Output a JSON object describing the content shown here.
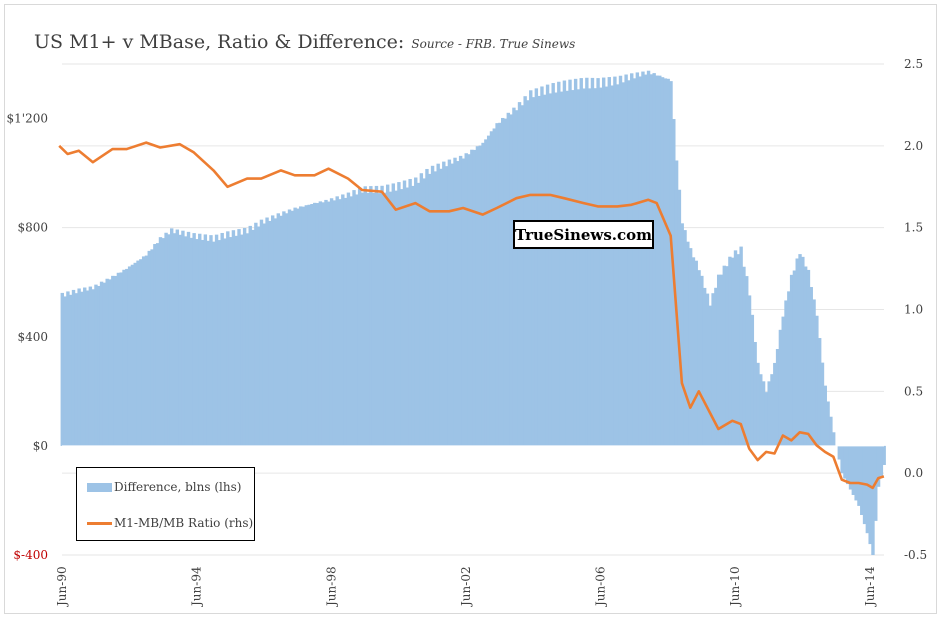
{
  "chart_data": {
    "type": "bar+line",
    "title": "US M1+ v MBase, Ratio & Difference:",
    "subtitle": "Source - FRB. True Sinews",
    "watermark": "TrueSinews.com",
    "x_range": [
      "1990-06",
      "2014-12"
    ],
    "x_tick_labels": [
      "Jun-90",
      "Jun-94",
      "Jun-98",
      "Jun-02",
      "Jun-06",
      "Jun-10",
      "Jun-14"
    ],
    "left_axis": {
      "ylim": [
        -400,
        1400
      ],
      "tick_labels": [
        {
          "value": 1200,
          "label": "$1'200"
        },
        {
          "value": 800,
          "label": "$800"
        },
        {
          "value": 400,
          "label": "$400"
        },
        {
          "value": 0,
          "label": "$0"
        },
        {
          "value": -400,
          "label": "$-400"
        }
      ],
      "negative_label_color": "#c00000"
    },
    "right_axis": {
      "ylim": [
        -0.5,
        2.5
      ],
      "tick_labels": [
        "2.5",
        "2.0",
        "1.5",
        "1.0",
        "0.5",
        "0.0",
        "-0.5"
      ]
    },
    "grid": "horizontal",
    "legend_position": "bottom-left",
    "series": [
      {
        "name": "Difference, blns (lhs)",
        "kind": "bar",
        "axis": "left",
        "color": "#9dc3e6",
        "points": [
          [
            "1990-06",
            550
          ],
          [
            "1991-01",
            570
          ],
          [
            "1991-06",
            580
          ],
          [
            "1992-01",
            620
          ],
          [
            "1992-06",
            650
          ],
          [
            "1993-01",
            700
          ],
          [
            "1993-06",
            760
          ],
          [
            "1993-10",
            790
          ],
          [
            "1994-06",
            770
          ],
          [
            "1995-01",
            760
          ],
          [
            "1995-06",
            775
          ],
          [
            "1996-01",
            790
          ],
          [
            "1996-06",
            820
          ],
          [
            "1997-01",
            850
          ],
          [
            "1997-06",
            870
          ],
          [
            "1998-01",
            890
          ],
          [
            "1998-06",
            900
          ],
          [
            "1999-01",
            920
          ],
          [
            "1999-06",
            940
          ],
          [
            "2000-01",
            940
          ],
          [
            "2000-06",
            950
          ],
          [
            "2001-01",
            970
          ],
          [
            "2001-06",
            1010
          ],
          [
            "2002-01",
            1040
          ],
          [
            "2002-06",
            1060
          ],
          [
            "2003-01",
            1110
          ],
          [
            "2003-06",
            1180
          ],
          [
            "2004-01",
            1240
          ],
          [
            "2004-06",
            1290
          ],
          [
            "2005-01",
            1310
          ],
          [
            "2005-06",
            1320
          ],
          [
            "2006-01",
            1330
          ],
          [
            "2006-06",
            1330
          ],
          [
            "2007-01",
            1340
          ],
          [
            "2007-06",
            1355
          ],
          [
            "2007-12",
            1370
          ],
          [
            "2008-03",
            1360
          ],
          [
            "2008-08",
            1340
          ],
          [
            "2008-10",
            1050
          ],
          [
            "2008-12",
            820
          ],
          [
            "2009-03",
            720
          ],
          [
            "2009-06",
            650
          ],
          [
            "2009-10",
            520
          ],
          [
            "2010-01",
            620
          ],
          [
            "2010-06",
            700
          ],
          [
            "2010-09",
            720
          ],
          [
            "2010-12",
            560
          ],
          [
            "2011-03",
            300
          ],
          [
            "2011-06",
            200
          ],
          [
            "2011-09",
            300
          ],
          [
            "2011-12",
            480
          ],
          [
            "2012-03",
            620
          ],
          [
            "2012-06",
            710
          ],
          [
            "2012-09",
            640
          ],
          [
            "2012-12",
            480
          ],
          [
            "2013-03",
            220
          ],
          [
            "2013-06",
            50
          ],
          [
            "2013-09",
            -100
          ],
          [
            "2013-12",
            -160
          ],
          [
            "2014-03",
            -220
          ],
          [
            "2014-06",
            -320
          ],
          [
            "2014-08",
            -400
          ],
          [
            "2014-10",
            -150
          ],
          [
            "2014-12",
            -70
          ]
        ]
      },
      {
        "name": "M1-MB/MB Ratio (rhs)",
        "kind": "line",
        "axis": "right",
        "color": "#ed7d31",
        "points": [
          [
            "1990-06",
            2.0
          ],
          [
            "1990-09",
            1.95
          ],
          [
            "1991-01",
            1.97
          ],
          [
            "1991-06",
            1.9
          ],
          [
            "1992-01",
            1.98
          ],
          [
            "1992-06",
            1.98
          ],
          [
            "1993-01",
            2.02
          ],
          [
            "1993-06",
            1.99
          ],
          [
            "1994-01",
            2.01
          ],
          [
            "1994-06",
            1.96
          ],
          [
            "1995-01",
            1.85
          ],
          [
            "1995-06",
            1.75
          ],
          [
            "1996-01",
            1.8
          ],
          [
            "1996-06",
            1.8
          ],
          [
            "1997-01",
            1.85
          ],
          [
            "1997-06",
            1.82
          ],
          [
            "1998-01",
            1.82
          ],
          [
            "1998-06",
            1.86
          ],
          [
            "1999-01",
            1.8
          ],
          [
            "1999-06",
            1.73
          ],
          [
            "2000-01",
            1.72
          ],
          [
            "2000-06",
            1.61
          ],
          [
            "2001-01",
            1.65
          ],
          [
            "2001-06",
            1.6
          ],
          [
            "2002-01",
            1.6
          ],
          [
            "2002-06",
            1.62
          ],
          [
            "2003-01",
            1.58
          ],
          [
            "2003-06",
            1.62
          ],
          [
            "2004-01",
            1.68
          ],
          [
            "2004-06",
            1.7
          ],
          [
            "2005-01",
            1.7
          ],
          [
            "2005-06",
            1.68
          ],
          [
            "2006-01",
            1.65
          ],
          [
            "2006-06",
            1.63
          ],
          [
            "2007-01",
            1.63
          ],
          [
            "2007-06",
            1.64
          ],
          [
            "2007-12",
            1.67
          ],
          [
            "2008-03",
            1.65
          ],
          [
            "2008-08",
            1.45
          ],
          [
            "2008-10",
            1.0
          ],
          [
            "2008-12",
            0.55
          ],
          [
            "2009-03",
            0.4
          ],
          [
            "2009-06",
            0.5
          ],
          [
            "2010-01",
            0.27
          ],
          [
            "2010-06",
            0.32
          ],
          [
            "2010-09",
            0.3
          ],
          [
            "2010-12",
            0.15
          ],
          [
            "2011-03",
            0.08
          ],
          [
            "2011-06",
            0.13
          ],
          [
            "2011-09",
            0.12
          ],
          [
            "2011-12",
            0.23
          ],
          [
            "2012-03",
            0.2
          ],
          [
            "2012-06",
            0.25
          ],
          [
            "2012-09",
            0.24
          ],
          [
            "2012-12",
            0.17
          ],
          [
            "2013-03",
            0.13
          ],
          [
            "2013-06",
            0.1
          ],
          [
            "2013-09",
            -0.04
          ],
          [
            "2013-12",
            -0.06
          ],
          [
            "2014-03",
            -0.06
          ],
          [
            "2014-06",
            -0.07
          ],
          [
            "2014-08",
            -0.09
          ],
          [
            "2014-10",
            -0.03
          ],
          [
            "2014-12",
            -0.02
          ]
        ]
      }
    ]
  }
}
